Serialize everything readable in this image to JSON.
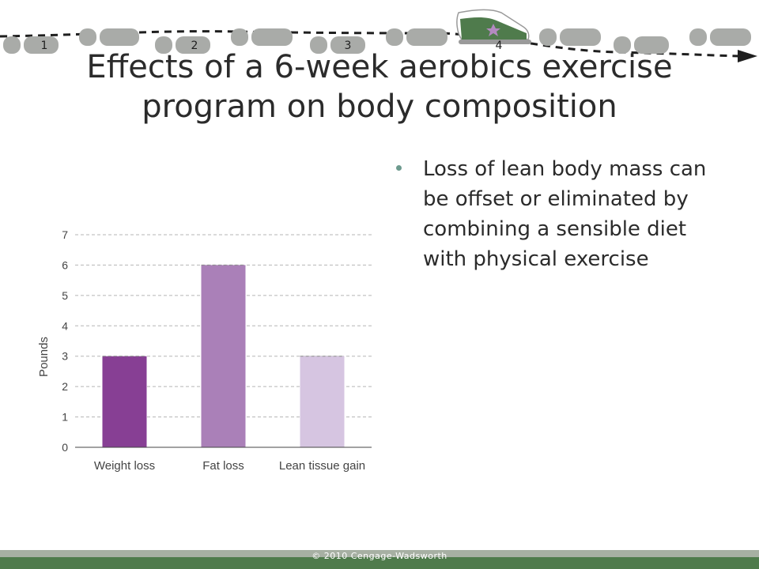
{
  "banner": {
    "step_numbers": [
      "1",
      "2",
      "3",
      "4"
    ],
    "colors": {
      "footprint": "#a9aba8",
      "path": "#1f1f1f",
      "shoe_upper": "#4f7b4c",
      "shoe_star": "#b38ac0"
    },
    "icons": [
      "footprint-icon",
      "sneaker-icon",
      "arrow-right-icon"
    ]
  },
  "title": "Effects of a 6-week aerobics exercise program on body composition",
  "bullets": [
    "Loss of lean body mass can be offset or eliminated by combining a sensible diet with physical exercise"
  ],
  "chart_data": {
    "type": "bar",
    "categories": [
      "Weight loss",
      "Fat loss",
      "Lean tissue gain"
    ],
    "values": [
      3,
      6,
      3
    ],
    "ylabel": "Pounds",
    "xlabel": "",
    "ylim": [
      0,
      7
    ],
    "yticks": [
      "0",
      "1",
      "2",
      "3",
      "4",
      "5",
      "6",
      "7"
    ],
    "grid": true,
    "colors": [
      "#873f94",
      "#aa80b8",
      "#d6c5e1"
    ]
  },
  "footer": {
    "copyright": "© 2010 Cengage-Wadsworth"
  }
}
